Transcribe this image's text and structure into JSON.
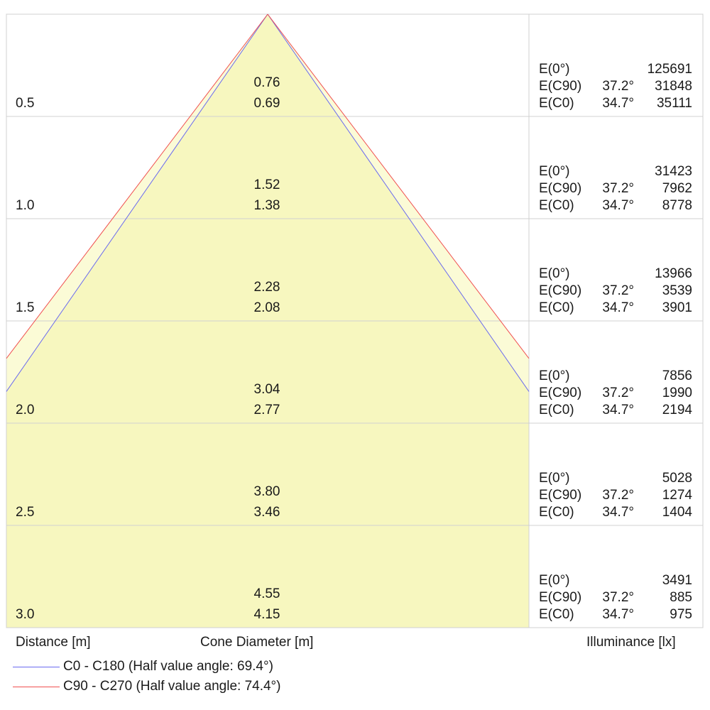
{
  "chart_data": {
    "type": "cone diagram",
    "distance_label": "Distance [m]",
    "diameter_label": "Cone Diameter [m]",
    "illuminance_label": "Illuminance [lx]",
    "rows": [
      {
        "distance": "0.5",
        "d_c90": "0.76",
        "d_c0": "0.69",
        "e0_label": "E(0°)",
        "e0": "125691",
        "ec90_label": "E(C90)",
        "ec90_angle": "37.2°",
        "ec90": "31848",
        "ec0_label": "E(C0)",
        "ec0_angle": "34.7°",
        "ec0": "35111"
      },
      {
        "distance": "1.0",
        "d_c90": "1.52",
        "d_c0": "1.38",
        "e0_label": "E(0°)",
        "e0": "31423",
        "ec90_label": "E(C90)",
        "ec90_angle": "37.2°",
        "ec90": "7962",
        "ec0_label": "E(C0)",
        "ec0_angle": "34.7°",
        "ec0": "8778"
      },
      {
        "distance": "1.5",
        "d_c90": "2.28",
        "d_c0": "2.08",
        "e0_label": "E(0°)",
        "e0": "13966",
        "ec90_label": "E(C90)",
        "ec90_angle": "37.2°",
        "ec90": "3539",
        "ec0_label": "E(C0)",
        "ec0_angle": "34.7°",
        "ec0": "3901"
      },
      {
        "distance": "2.0",
        "d_c90": "3.04",
        "d_c0": "2.77",
        "e0_label": "E(0°)",
        "e0": "7856",
        "ec90_label": "E(C90)",
        "ec90_angle": "37.2°",
        "ec90": "1990",
        "ec0_label": "E(C0)",
        "ec0_angle": "34.7°",
        "ec0": "2194"
      },
      {
        "distance": "2.5",
        "d_c90": "3.80",
        "d_c0": "3.46",
        "e0_label": "E(0°)",
        "e0": "5028",
        "ec90_label": "E(C90)",
        "ec90_angle": "37.2°",
        "ec90": "1274",
        "ec0_label": "E(C0)",
        "ec0_angle": "34.7°",
        "ec0": "1404"
      },
      {
        "distance": "3.0",
        "d_c90": "4.55",
        "d_c0": "4.15",
        "e0_label": "E(0°)",
        "e0": "3491",
        "ec90_label": "E(C90)",
        "ec90_angle": "37.2°",
        "ec90": "885",
        "ec0_label": "E(C0)",
        "ec0_angle": "34.7°",
        "ec0": "975"
      }
    ],
    "series": [
      {
        "name": "C0 - C180 (Half value angle: 69.4°)",
        "half_value_angle": 69.4,
        "color": "#6b6bf0"
      },
      {
        "name": "C90 - C270 (Half value angle: 74.4°)",
        "half_value_angle": 74.4,
        "color": "#f05050"
      }
    ],
    "fill_color_inner": "#f7f7bf",
    "fill_color_outer": "#fbfbd6",
    "grid_color": "#d0d0d0"
  }
}
